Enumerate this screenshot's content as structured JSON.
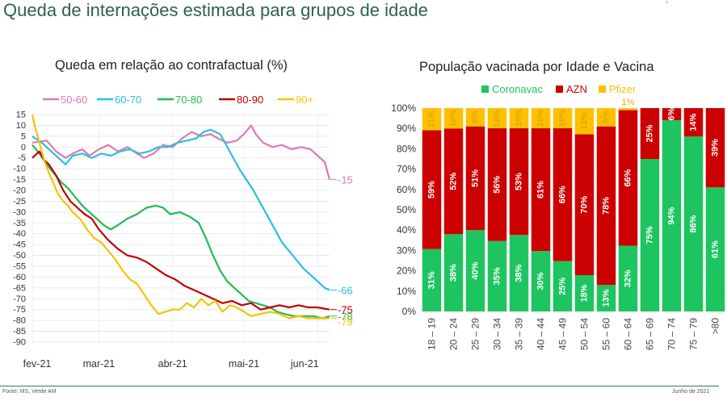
{
  "page": {
    "title": "Queda de internações estimada para grupos de idade",
    "source": "Fonte: MS, Verde AM",
    "date": "Junho de 2021",
    "marker": "+"
  },
  "chart_data": [
    {
      "type": "line",
      "title": "Queda em relação ao contrafactual (%)",
      "xlabel": "",
      "ylabel": "",
      "ylim": [
        -90,
        15
      ],
      "yticks": [
        15,
        10,
        5,
        0,
        -5,
        -10,
        -15,
        -20,
        -25,
        -30,
        -35,
        -40,
        -45,
        -50,
        -55,
        -60,
        -65,
        -70,
        -75,
        -80,
        -85,
        -90
      ],
      "xticks": [
        "fev-21",
        "mar-21",
        "abr-21",
        "mai-21",
        "jun-21"
      ],
      "x_month_positions": [
        0,
        28,
        59,
        89,
        120
      ],
      "grid": true,
      "legend_position": "top",
      "series": [
        {
          "name": "50-60",
          "color": "#d97bb5",
          "end_label": "-15",
          "points": [
            [
              0,
              2
            ],
            [
              6,
              3
            ],
            [
              10,
              -2
            ],
            [
              14,
              -5
            ],
            [
              17,
              -3
            ],
            [
              21,
              -1
            ],
            [
              24,
              -4
            ],
            [
              28,
              -1
            ],
            [
              32,
              1
            ],
            [
              36,
              -2
            ],
            [
              40,
              0
            ],
            [
              44,
              -3
            ],
            [
              47,
              -5
            ],
            [
              51,
              -3
            ],
            [
              55,
              1
            ],
            [
              59,
              0
            ],
            [
              63,
              4
            ],
            [
              67,
              7
            ],
            [
              71,
              5
            ],
            [
              75,
              6
            ],
            [
              78,
              4
            ],
            [
              82,
              2
            ],
            [
              86,
              3
            ],
            [
              89,
              6
            ],
            [
              92,
              10
            ],
            [
              94,
              6
            ],
            [
              97,
              2
            ],
            [
              101,
              0
            ],
            [
              105,
              1
            ],
            [
              109,
              -1
            ],
            [
              113,
              0
            ],
            [
              117,
              -1
            ],
            [
              120,
              -4
            ],
            [
              123,
              -7
            ],
            [
              125,
              -15
            ]
          ]
        },
        {
          "name": "60-70",
          "color": "#2bbfe0",
          "end_label": "-66",
          "points": [
            [
              0,
              5
            ],
            [
              4,
              2
            ],
            [
              8,
              -2
            ],
            [
              11,
              -5
            ],
            [
              14,
              -8
            ],
            [
              17,
              -4
            ],
            [
              21,
              -3
            ],
            [
              25,
              -5
            ],
            [
              29,
              -3
            ],
            [
              33,
              -4
            ],
            [
              37,
              -2
            ],
            [
              41,
              -1
            ],
            [
              45,
              -3
            ],
            [
              49,
              -2
            ],
            [
              53,
              0
            ],
            [
              57,
              0
            ],
            [
              61,
              2
            ],
            [
              65,
              3
            ],
            [
              69,
              4
            ],
            [
              72,
              7
            ],
            [
              75,
              8
            ],
            [
              77,
              7
            ],
            [
              79,
              6
            ],
            [
              81,
              2
            ],
            [
              84,
              -4
            ],
            [
              87,
              -10
            ],
            [
              90,
              -15
            ],
            [
              93,
              -20
            ],
            [
              96,
              -26
            ],
            [
              99,
              -32
            ],
            [
              102,
              -38
            ],
            [
              105,
              -44
            ],
            [
              108,
              -48
            ],
            [
              111,
              -52
            ],
            [
              114,
              -56
            ],
            [
              117,
              -59
            ],
            [
              120,
              -62
            ],
            [
              123,
              -65
            ],
            [
              125,
              -66
            ]
          ]
        },
        {
          "name": "70-80",
          "color": "#22bb55",
          "end_label": "-78",
          "points": [
            [
              0,
              1
            ],
            [
              3,
              -3
            ],
            [
              6,
              -8
            ],
            [
              9,
              -12
            ],
            [
              12,
              -16
            ],
            [
              15,
              -19
            ],
            [
              18,
              -23
            ],
            [
              21,
              -27
            ],
            [
              24,
              -30
            ],
            [
              27,
              -33
            ],
            [
              30,
              -36
            ],
            [
              33,
              -38
            ],
            [
              36,
              -36
            ],
            [
              40,
              -33
            ],
            [
              44,
              -31
            ],
            [
              48,
              -28
            ],
            [
              52,
              -27
            ],
            [
              55,
              -28
            ],
            [
              58,
              -31
            ],
            [
              62,
              -30
            ],
            [
              66,
              -32
            ],
            [
              70,
              -35
            ],
            [
              73,
              -42
            ],
            [
              76,
              -50
            ],
            [
              79,
              -57
            ],
            [
              82,
              -62
            ],
            [
              85,
              -65
            ],
            [
              88,
              -68
            ],
            [
              91,
              -71
            ],
            [
              94,
              -72
            ],
            [
              97,
              -73
            ],
            [
              100,
              -74
            ],
            [
              103,
              -76
            ],
            [
              106,
              -77
            ],
            [
              110,
              -78
            ],
            [
              114,
              -78
            ],
            [
              118,
              -78
            ],
            [
              122,
              -79
            ],
            [
              125,
              -78
            ]
          ]
        },
        {
          "name": "80-90",
          "color": "#c00000",
          "end_label": "-75",
          "points": [
            [
              0,
              -5
            ],
            [
              3,
              -2
            ],
            [
              5,
              -6
            ],
            [
              7,
              -8
            ],
            [
              10,
              -13
            ],
            [
              13,
              -20
            ],
            [
              16,
              -25
            ],
            [
              19,
              -28
            ],
            [
              22,
              -31
            ],
            [
              25,
              -33
            ],
            [
              28,
              -38
            ],
            [
              32,
              -43
            ],
            [
              36,
              -47
            ],
            [
              40,
              -50
            ],
            [
              44,
              -51
            ],
            [
              48,
              -53
            ],
            [
              52,
              -56
            ],
            [
              56,
              -59
            ],
            [
              60,
              -61
            ],
            [
              64,
              -64
            ],
            [
              68,
              -66
            ],
            [
              72,
              -68
            ],
            [
              76,
              -70
            ],
            [
              80,
              -72
            ],
            [
              84,
              -71
            ],
            [
              88,
              -73
            ],
            [
              92,
              -72
            ],
            [
              96,
              -75
            ],
            [
              100,
              -74
            ],
            [
              104,
              -73
            ],
            [
              108,
              -74
            ],
            [
              112,
              -73
            ],
            [
              116,
              -74
            ],
            [
              120,
              -74
            ],
            [
              125,
              -75
            ]
          ]
        },
        {
          "name": "90+",
          "color": "#f5c400",
          "end_label": "-79",
          "points": [
            [
              0,
              15
            ],
            [
              1,
              10
            ],
            [
              3,
              2
            ],
            [
              5,
              -6
            ],
            [
              7,
              -12
            ],
            [
              9,
              -17
            ],
            [
              11,
              -22
            ],
            [
              13,
              -25
            ],
            [
              15,
              -27
            ],
            [
              17,
              -30
            ],
            [
              20,
              -33
            ],
            [
              23,
              -38
            ],
            [
              26,
              -42
            ],
            [
              29,
              -44
            ],
            [
              32,
              -48
            ],
            [
              35,
              -52
            ],
            [
              38,
              -57
            ],
            [
              41,
              -61
            ],
            [
              44,
              -63
            ],
            [
              47,
              -68
            ],
            [
              50,
              -73
            ],
            [
              53,
              -77
            ],
            [
              56,
              -76
            ],
            [
              59,
              -75
            ],
            [
              62,
              -75
            ],
            [
              65,
              -72
            ],
            [
              68,
              -74
            ],
            [
              71,
              -70
            ],
            [
              74,
              -73
            ],
            [
              77,
              -71
            ],
            [
              80,
              -76
            ],
            [
              83,
              -73
            ],
            [
              86,
              -74
            ],
            [
              89,
              -76
            ],
            [
              92,
              -78
            ],
            [
              96,
              -77
            ],
            [
              100,
              -76
            ],
            [
              104,
              -77
            ],
            [
              108,
              -79
            ],
            [
              112,
              -78
            ],
            [
              116,
              -79
            ],
            [
              120,
              -79
            ],
            [
              125,
              -79
            ]
          ]
        }
      ]
    },
    {
      "type": "bar",
      "stacked": true,
      "title": "População vacinada por Idade e Vacina",
      "categories": [
        "18 – 19",
        "20 – 24",
        "25 – 29",
        "30 – 34",
        "35 – 39",
        "40 – 44",
        "45 – 49",
        "50 – 54",
        "55 – 60",
        "60 – 64",
        "65 – 69",
        "70 – 74",
        "75 – 79",
        ">80"
      ],
      "ylim": [
        0,
        100
      ],
      "yticks": [
        "0%",
        "10%",
        "20%",
        "30%",
        "40%",
        "50%",
        "60%",
        "70%",
        "80%",
        "90%",
        "100%"
      ],
      "legend_position": "top",
      "series": [
        {
          "name": "Coronavac",
          "color": "#1ec45f",
          "values": [
            31,
            38,
            40,
            35,
            38,
            30,
            25,
            18,
            13,
            32,
            75,
            94,
            86,
            61
          ],
          "labels": [
            "31%",
            "38%",
            "40%",
            "35%",
            "38%",
            "30%",
            "25%",
            "18%",
            "13%",
            "32%",
            "75%",
            "94%",
            "86%",
            "61%"
          ]
        },
        {
          "name": "AZN",
          "color": "#cc0000",
          "values": [
            59,
            52,
            51,
            56,
            53,
            61,
            66,
            70,
            78,
            66,
            25,
            6,
            14,
            39
          ],
          "labels": [
            "59%",
            "52%",
            "51%",
            "56%",
            "53%",
            "61%",
            "66%",
            "70%",
            "78%",
            "66%",
            "25%",
            "6%",
            "14%",
            "39%"
          ]
        },
        {
          "name": "Pfizer",
          "color": "#ffc000",
          "values": [
            11,
            10,
            9,
            10,
            10,
            10,
            10,
            13,
            9,
            1,
            0,
            0,
            0,
            0
          ],
          "labels": [
            "11%",
            "10%",
            "9%",
            "10%",
            "10%",
            "10%",
            "10%",
            "13%",
            "9%",
            "1%",
            "",
            "",
            "",
            ""
          ]
        }
      ]
    }
  ]
}
